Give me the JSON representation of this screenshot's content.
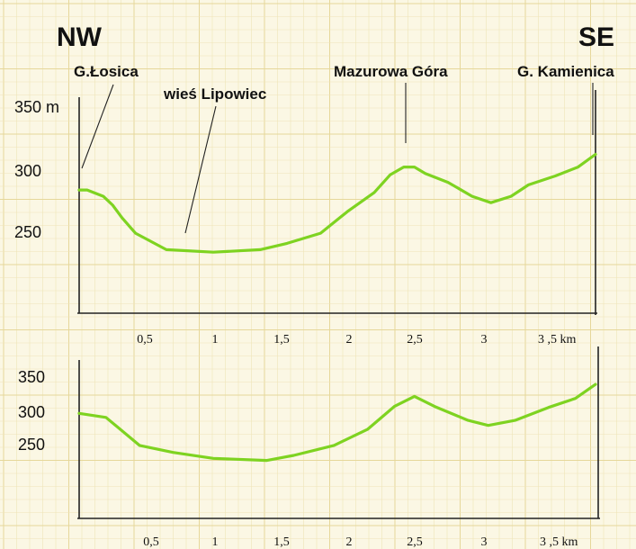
{
  "direction": {
    "left": "NW",
    "right": "SE"
  },
  "places": [
    {
      "name": "G.Łosica",
      "km": 0.0
    },
    {
      "name": "wieś Lipowiec",
      "km": 0.8
    },
    {
      "name": "Mazurowa Góra",
      "km": 2.45
    },
    {
      "name": "G. Kamienica",
      "km": 3.85
    }
  ],
  "chart_data": [
    {
      "type": "line",
      "xlabel": "km",
      "xlim": [
        0,
        3.85
      ],
      "ylim": [
        205,
        375
      ],
      "x_ticks": [
        "0,5",
        "1",
        "1,5",
        "2",
        "2,5",
        "3",
        "3 ,5  km"
      ],
      "x_tick_values": [
        0.5,
        1,
        1.5,
        2,
        2.5,
        3,
        3.5
      ],
      "y_ticks": [
        "350 m",
        "300",
        "250"
      ],
      "y_tick_values": [
        350,
        300,
        250
      ],
      "series": [
        {
          "x": [
            0,
            0.06,
            0.18,
            0.25,
            0.32,
            0.42,
            0.65,
            1.0,
            1.35,
            1.55,
            1.8,
            2.0,
            2.2,
            2.32,
            2.42,
            2.5,
            2.58,
            2.75,
            2.93,
            3.07,
            3.22,
            3.35,
            3.55,
            3.72,
            3.85
          ],
          "y": [
            302,
            302,
            297,
            290,
            280,
            268,
            255,
            253,
            255,
            260,
            268,
            285,
            300,
            314,
            320,
            320,
            315,
            308,
            297,
            292,
            297,
            306,
            313,
            320,
            330
          ]
        }
      ]
    },
    {
      "type": "line",
      "xlabel": "km",
      "xlim": [
        0,
        3.85
      ],
      "ylim": [
        200,
        380
      ],
      "x_ticks": [
        "0,5",
        "1",
        "1,5",
        "2",
        "2,5",
        "3",
        "3 ,5  km"
      ],
      "x_tick_values": [
        0.5,
        1,
        1.5,
        2,
        2.5,
        3,
        3.5
      ],
      "y_ticks": [
        "350",
        "300",
        "250"
      ],
      "y_tick_values": [
        350,
        300,
        250
      ],
      "series": [
        {
          "x": [
            0,
            0.2,
            0.45,
            0.7,
            1.0,
            1.4,
            1.6,
            1.9,
            2.15,
            2.35,
            2.5,
            2.65,
            2.9,
            3.05,
            3.25,
            3.5,
            3.7,
            3.85
          ],
          "y": [
            305,
            301,
            273,
            266,
            260,
            258,
            263,
            273,
            289,
            312,
            322,
            312,
            298,
            293,
            298,
            311,
            320,
            334
          ]
        }
      ]
    }
  ]
}
